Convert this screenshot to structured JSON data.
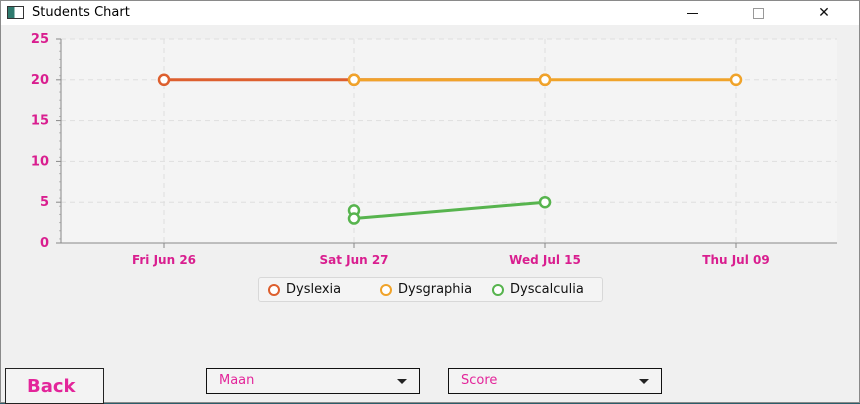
{
  "window": {
    "title": "Students Chart",
    "min_icon": "minimize-icon",
    "max_icon": "maximize-icon",
    "close_icon": "close-icon"
  },
  "chart_data": {
    "type": "line",
    "categories": [
      "Fri Jun 26",
      "Sat Jun 27",
      "Wed Jul 15",
      "Thu Jul 09"
    ],
    "ylim": [
      0,
      25
    ],
    "yticks": [
      "0",
      "5",
      "10",
      "15",
      "20",
      "25"
    ],
    "grid": true,
    "legend_position": "bottom-center",
    "series": [
      {
        "name": "Dyslexia",
        "color": "#dd5f2e",
        "points": [
          {
            "x": "Fri Jun 26",
            "y": 20
          },
          {
            "x": "Sat Jun 27",
            "y": 20
          },
          {
            "x": "Wed Jul 15",
            "y": 20
          }
        ]
      },
      {
        "name": "Dysgraphia",
        "color": "#f0a32a",
        "points": [
          {
            "x": "Sat Jun 27",
            "y": 20
          },
          {
            "x": "Wed Jul 15",
            "y": 20
          },
          {
            "x": "Thu Jul 09",
            "y": 20
          }
        ]
      },
      {
        "name": "Dyscalculia",
        "color": "#57b44e",
        "points": [
          {
            "x": "Sat Jun 27",
            "y": 4
          },
          {
            "x": "Sat Jun 27",
            "y": 3
          },
          {
            "x": "Wed Jul 15",
            "y": 5
          }
        ]
      }
    ]
  },
  "controls": {
    "back_label": "Back",
    "student_select": "Maan",
    "metric_select": "Score",
    "accent_color": "#e3259a"
  }
}
